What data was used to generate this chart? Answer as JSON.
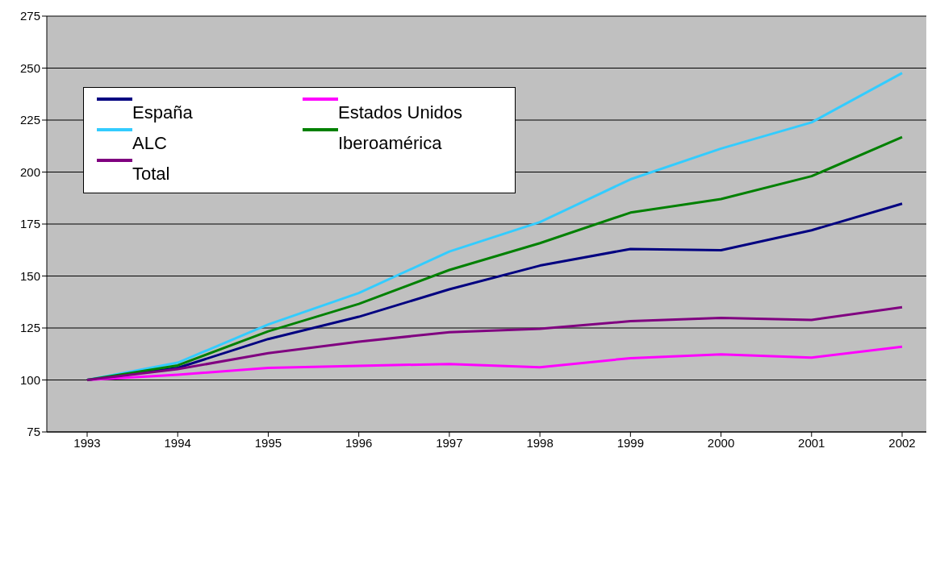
{
  "chart_data": {
    "type": "line",
    "categories": [
      "1993",
      "1994",
      "1995",
      "1996",
      "1997",
      "1998",
      "1999",
      "2000",
      "2001",
      "2002"
    ],
    "series": [
      {
        "name": "España",
        "color": "#000080",
        "values": [
          100,
          105.8,
          119.7,
          130.4,
          143.6,
          155,
          163,
          162.4,
          172,
          184.8
        ]
      },
      {
        "name": "Estados Unidos",
        "color": "#ff00ff",
        "values": [
          100,
          102.5,
          105.8,
          106.8,
          107.7,
          106.1,
          110.5,
          112.3,
          110.8,
          116
        ]
      },
      {
        "name": "ALC",
        "color": "#33ccff",
        "values": [
          100,
          108.3,
          126.7,
          141.8,
          161.8,
          175.9,
          196.5,
          211.3,
          223.9,
          247.6
        ]
      },
      {
        "name": "Iberoamérica",
        "color": "#008000",
        "values": [
          100,
          107,
          123.4,
          136.6,
          152.9,
          165.8,
          180.5,
          187,
          198,
          216.8
        ]
      },
      {
        "name": "Total",
        "color": "#800080",
        "values": [
          100,
          105.2,
          112.9,
          118.4,
          123,
          124.6,
          128.3,
          129.8,
          128.9,
          135
        ]
      }
    ],
    "ylim": [
      75,
      275
    ],
    "yticks": [
      75,
      100,
      125,
      150,
      175,
      200,
      225,
      250,
      275
    ],
    "grid": "y",
    "legend": "top left"
  }
}
